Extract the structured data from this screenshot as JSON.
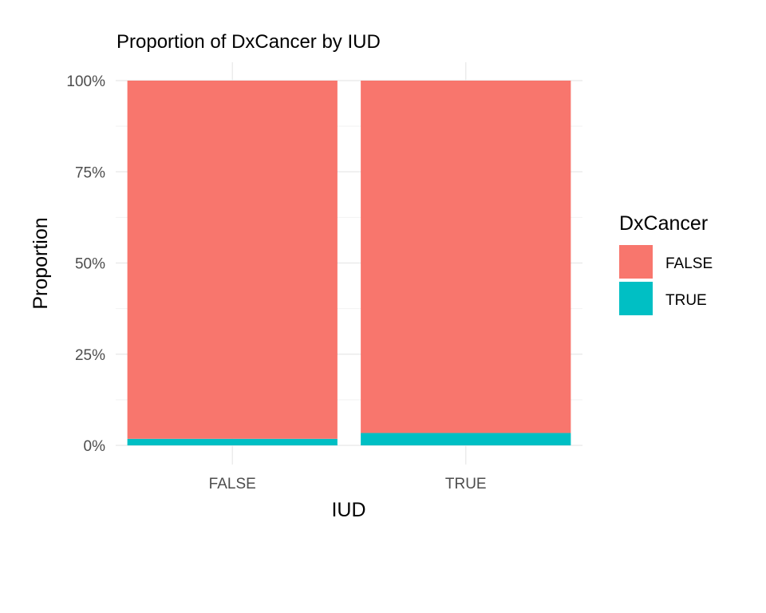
{
  "chart_data": {
    "type": "bar",
    "stacked": true,
    "title": "Proportion of DxCancer by IUD",
    "xlabel": "IUD",
    "ylabel": "Proportion",
    "categories": [
      "FALSE",
      "TRUE"
    ],
    "ylim": [
      0,
      1
    ],
    "yticks": [
      0,
      0.25,
      0.5,
      0.75,
      1
    ],
    "ytick_labels": [
      "0%",
      "25%",
      "50%",
      "75%",
      "100%"
    ],
    "grid": true,
    "legend": {
      "title": "DxCancer",
      "position": "right"
    },
    "series": [
      {
        "name": "FALSE",
        "color": "#F8766D",
        "values": [
          0.982,
          0.966
        ]
      },
      {
        "name": "TRUE",
        "color": "#00BFC4",
        "values": [
          0.018,
          0.034
        ]
      }
    ]
  }
}
